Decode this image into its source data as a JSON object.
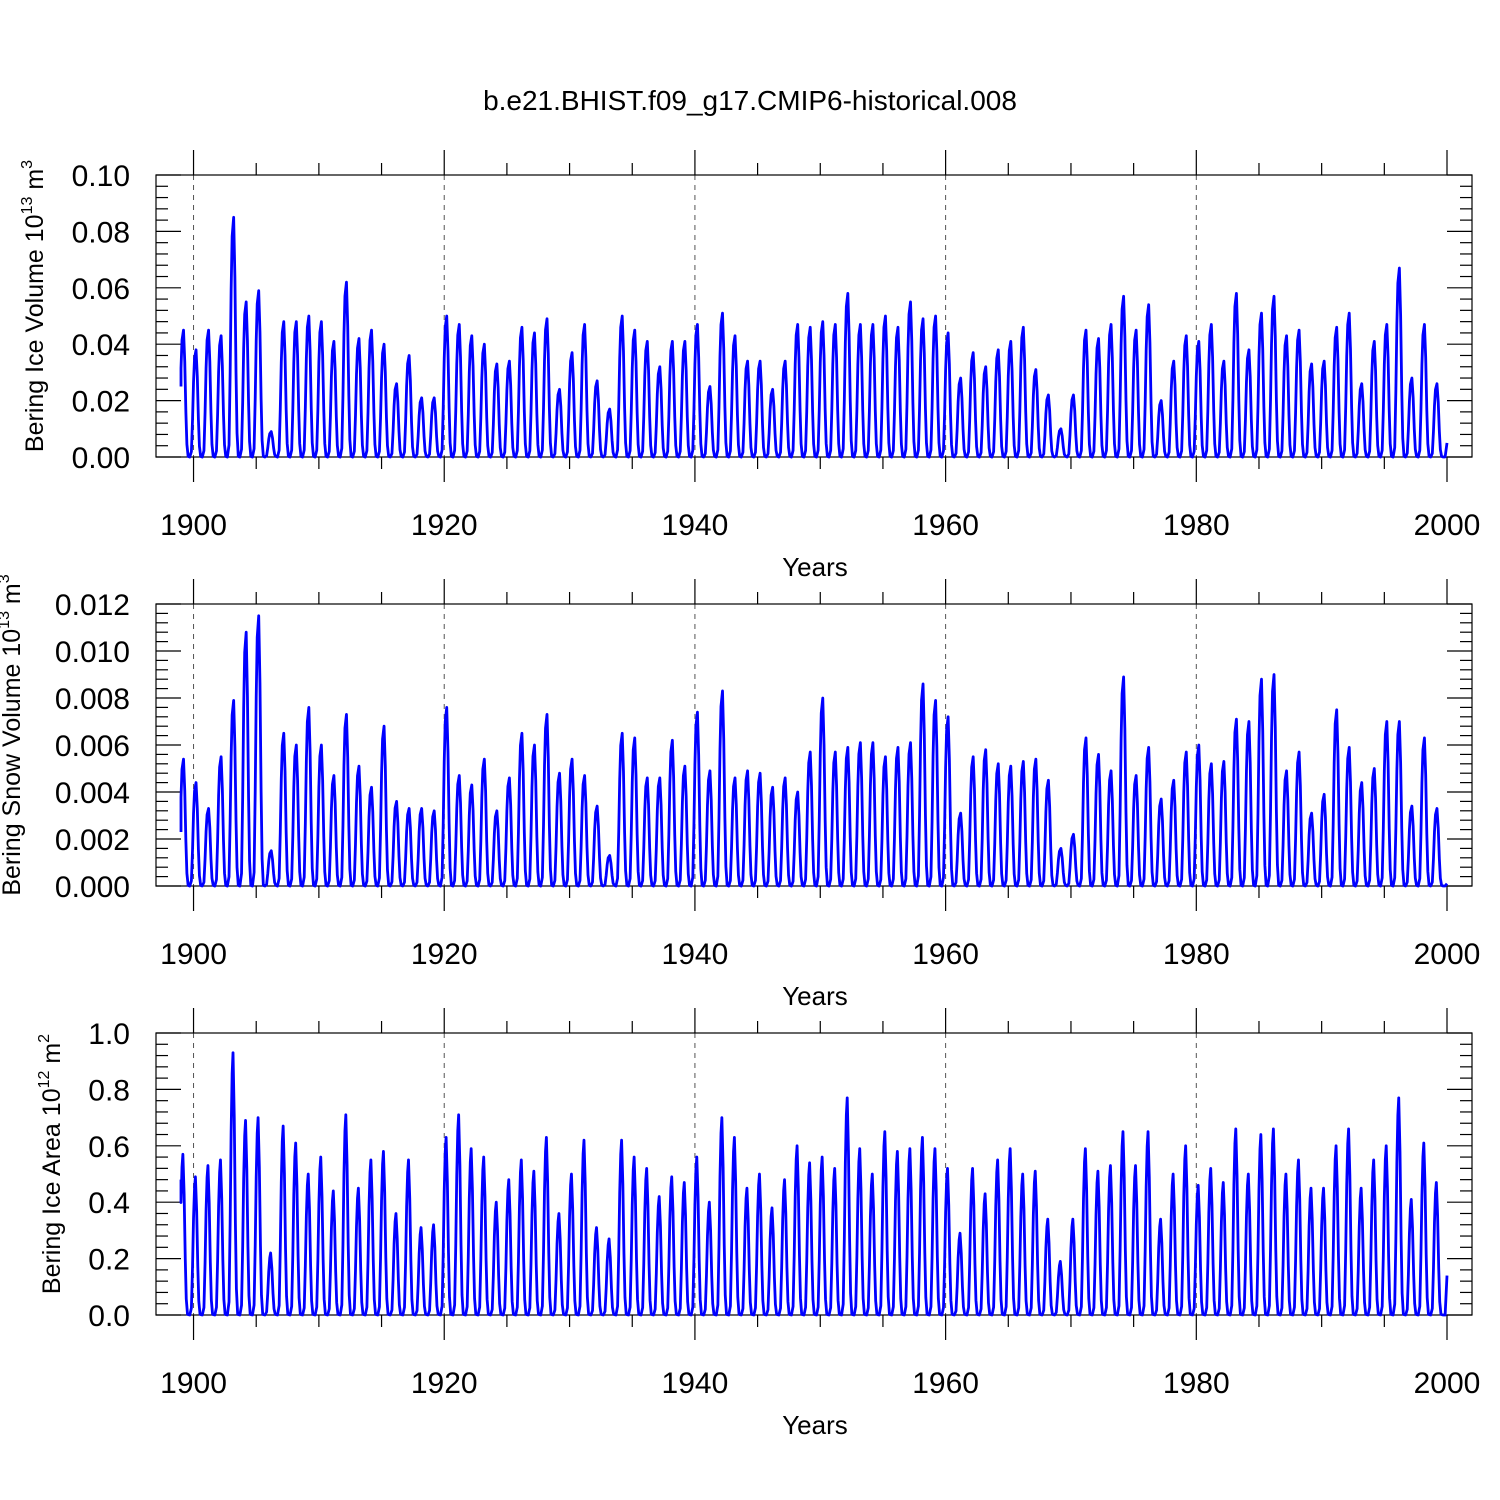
{
  "title": "b.e21.BHIST.f09_g17.CMIP6-historical.008",
  "line_color": "#0000ff",
  "chart_data": [
    {
      "type": "line",
      "ylabel": {
        "main": "Bering Ice Volume 10",
        "exp": "13",
        "unit": " m",
        "unit_exp": "3"
      },
      "xlabel": "Years",
      "xlim": [
        1898.8,
        2000.1
      ],
      "xticks": [
        1900,
        1920,
        1940,
        1960,
        1980,
        2000
      ],
      "xtick_labels": [
        "1900",
        "1920",
        "1940",
        "1960",
        "1980",
        "2000"
      ],
      "ylim": [
        0,
        0.1
      ],
      "yticks": [
        0,
        0.02,
        0.04,
        0.06,
        0.08,
        0.1
      ],
      "ytick_labels": [
        "0.00",
        "0.02",
        "0.04",
        "0.06",
        "0.08",
        "0.10"
      ],
      "grid_x": "dashed",
      "peak_month_offset": 0.25,
      "years": [
        1899,
        1900,
        1901,
        1902,
        1903,
        1904,
        1905,
        1906,
        1907,
        1908,
        1909,
        1910,
        1911,
        1912,
        1913,
        1914,
        1915,
        1916,
        1917,
        1918,
        1919,
        1920,
        1921,
        1922,
        1923,
        1924,
        1925,
        1926,
        1927,
        1928,
        1929,
        1930,
        1931,
        1932,
        1933,
        1934,
        1935,
        1936,
        1937,
        1938,
        1939,
        1940,
        1941,
        1942,
        1943,
        1944,
        1945,
        1946,
        1947,
        1948,
        1949,
        1950,
        1951,
        1952,
        1953,
        1954,
        1955,
        1956,
        1957,
        1958,
        1959,
        1960,
        1961,
        1962,
        1963,
        1964,
        1965,
        1966,
        1967,
        1968,
        1969,
        1970,
        1971,
        1972,
        1973,
        1974,
        1975,
        1976,
        1977,
        1978,
        1979,
        1980,
        1981,
        1982,
        1983,
        1984,
        1985,
        1986,
        1987,
        1988,
        1989,
        1990,
        1991,
        1992,
        1993,
        1994,
        1995,
        1996,
        1997,
        1998,
        1999
      ],
      "annual_peaks": [
        0.045,
        0.038,
        0.045,
        0.043,
        0.085,
        0.055,
        0.059,
        0.009,
        0.048,
        0.048,
        0.05,
        0.048,
        0.041,
        0.062,
        0.042,
        0.045,
        0.04,
        0.026,
        0.036,
        0.021,
        0.021,
        0.05,
        0.047,
        0.043,
        0.04,
        0.033,
        0.034,
        0.046,
        0.044,
        0.049,
        0.024,
        0.037,
        0.047,
        0.027,
        0.017,
        0.05,
        0.045,
        0.041,
        0.032,
        0.041,
        0.041,
        0.047,
        0.025,
        0.051,
        0.043,
        0.034,
        0.034,
        0.024,
        0.034,
        0.047,
        0.046,
        0.048,
        0.047,
        0.058,
        0.047,
        0.047,
        0.05,
        0.046,
        0.055,
        0.049,
        0.05,
        0.044,
        0.028,
        0.037,
        0.032,
        0.038,
        0.041,
        0.046,
        0.031,
        0.022,
        0.01,
        0.022,
        0.045,
        0.042,
        0.047,
        0.057,
        0.045,
        0.054,
        0.02,
        0.034,
        0.043,
        0.041,
        0.047,
        0.034,
        0.058,
        0.038,
        0.051,
        0.057,
        0.043,
        0.045,
        0.033,
        0.034,
        0.046,
        0.051,
        0.026,
        0.041,
        0.047,
        0.067,
        0.028,
        0.047,
        0.026
      ],
      "series_start": 0.025,
      "series_end": 0.005
    },
    {
      "type": "line",
      "ylabel": {
        "main": "Bering Snow Volume 10",
        "exp": "13",
        "unit": " m",
        "unit_exp": "3"
      },
      "xlabel": "Years",
      "xlim": [
        1898.8,
        2000.1
      ],
      "xticks": [
        1900,
        1920,
        1940,
        1960,
        1980,
        2000
      ],
      "xtick_labels": [
        "1900",
        "1920",
        "1940",
        "1960",
        "1980",
        "2000"
      ],
      "ylim": [
        0,
        0.012
      ],
      "yticks": [
        0,
        0.002,
        0.004,
        0.006,
        0.008,
        0.01,
        0.012
      ],
      "ytick_labels": [
        "0.000",
        "0.002",
        "0.004",
        "0.006",
        "0.008",
        "0.010",
        "0.012"
      ],
      "grid_x": "dashed",
      "peak_month_offset": 0.25,
      "years": [
        1899,
        1900,
        1901,
        1902,
        1903,
        1904,
        1905,
        1906,
        1907,
        1908,
        1909,
        1910,
        1911,
        1912,
        1913,
        1914,
        1915,
        1916,
        1917,
        1918,
        1919,
        1920,
        1921,
        1922,
        1923,
        1924,
        1925,
        1926,
        1927,
        1928,
        1929,
        1930,
        1931,
        1932,
        1933,
        1934,
        1935,
        1936,
        1937,
        1938,
        1939,
        1940,
        1941,
        1942,
        1943,
        1944,
        1945,
        1946,
        1947,
        1948,
        1949,
        1950,
        1951,
        1952,
        1953,
        1954,
        1955,
        1956,
        1957,
        1958,
        1959,
        1960,
        1961,
        1962,
        1963,
        1964,
        1965,
        1966,
        1967,
        1968,
        1969,
        1970,
        1971,
        1972,
        1973,
        1974,
        1975,
        1976,
        1977,
        1978,
        1979,
        1980,
        1981,
        1982,
        1983,
        1984,
        1985,
        1986,
        1987,
        1988,
        1989,
        1990,
        1991,
        1992,
        1993,
        1994,
        1995,
        1996,
        1997,
        1998,
        1999
      ],
      "annual_peaks": [
        0.0054,
        0.0044,
        0.0033,
        0.0055,
        0.0079,
        0.0108,
        0.0115,
        0.0015,
        0.0065,
        0.006,
        0.0076,
        0.006,
        0.0047,
        0.0073,
        0.0051,
        0.0042,
        0.0068,
        0.0036,
        0.0033,
        0.0033,
        0.0032,
        0.0076,
        0.0047,
        0.0043,
        0.0054,
        0.0032,
        0.0046,
        0.0065,
        0.006,
        0.0073,
        0.0048,
        0.0054,
        0.0047,
        0.0034,
        0.0013,
        0.0065,
        0.0063,
        0.0046,
        0.0046,
        0.0062,
        0.0051,
        0.0074,
        0.0049,
        0.0083,
        0.0046,
        0.0049,
        0.0048,
        0.0042,
        0.0046,
        0.004,
        0.0057,
        0.008,
        0.0057,
        0.0059,
        0.0061,
        0.0061,
        0.0055,
        0.0059,
        0.0061,
        0.0086,
        0.0079,
        0.0072,
        0.0031,
        0.0055,
        0.0058,
        0.0052,
        0.0051,
        0.0053,
        0.0054,
        0.0045,
        0.0016,
        0.0022,
        0.0063,
        0.0056,
        0.0049,
        0.0089,
        0.0047,
        0.0059,
        0.0037,
        0.0045,
        0.0057,
        0.006,
        0.0052,
        0.0053,
        0.0071,
        0.007,
        0.0088,
        0.009,
        0.0049,
        0.0057,
        0.0031,
        0.0039,
        0.0075,
        0.0059,
        0.0044,
        0.005,
        0.007,
        0.007,
        0.0034,
        0.0063,
        0.0033
      ],
      "series_start": 0.0023,
      "series_end": 0.0001
    },
    {
      "type": "line",
      "ylabel": {
        "main": "Bering Ice Area 10",
        "exp": "12",
        "unit": " m",
        "unit_exp": "2"
      },
      "xlabel": "Years",
      "xlim": [
        1898.8,
        2000.1
      ],
      "xticks": [
        1900,
        1920,
        1940,
        1960,
        1980,
        2000
      ],
      "xtick_labels": [
        "1900",
        "1920",
        "1940",
        "1960",
        "1980",
        "2000"
      ],
      "ylim": [
        0,
        1.0
      ],
      "yticks": [
        0,
        0.2,
        0.4,
        0.6,
        0.8,
        1.0
      ],
      "ytick_labels": [
        "0.0",
        "0.2",
        "0.4",
        "0.6",
        "0.8",
        "1.0"
      ],
      "grid_x": "dashed",
      "peak_month_offset": 0.2,
      "years": [
        1899,
        1900,
        1901,
        1902,
        1903,
        1904,
        1905,
        1906,
        1907,
        1908,
        1909,
        1910,
        1911,
        1912,
        1913,
        1914,
        1915,
        1916,
        1917,
        1918,
        1919,
        1920,
        1921,
        1922,
        1923,
        1924,
        1925,
        1926,
        1927,
        1928,
        1929,
        1930,
        1931,
        1932,
        1933,
        1934,
        1935,
        1936,
        1937,
        1938,
        1939,
        1940,
        1941,
        1942,
        1943,
        1944,
        1945,
        1946,
        1947,
        1948,
        1949,
        1950,
        1951,
        1952,
        1953,
        1954,
        1955,
        1956,
        1957,
        1958,
        1959,
        1960,
        1961,
        1962,
        1963,
        1964,
        1965,
        1966,
        1967,
        1968,
        1969,
        1970,
        1971,
        1972,
        1973,
        1974,
        1975,
        1976,
        1977,
        1978,
        1979,
        1980,
        1981,
        1982,
        1983,
        1984,
        1985,
        1986,
        1987,
        1988,
        1989,
        1990,
        1991,
        1992,
        1993,
        1994,
        1995,
        1996,
        1997,
        1998,
        1999
      ],
      "annual_peaks": [
        0.57,
        0.49,
        0.53,
        0.55,
        0.93,
        0.69,
        0.7,
        0.22,
        0.67,
        0.61,
        0.5,
        0.56,
        0.44,
        0.71,
        0.45,
        0.55,
        0.58,
        0.36,
        0.55,
        0.31,
        0.32,
        0.63,
        0.71,
        0.59,
        0.56,
        0.4,
        0.48,
        0.55,
        0.51,
        0.63,
        0.36,
        0.5,
        0.62,
        0.31,
        0.27,
        0.62,
        0.56,
        0.52,
        0.42,
        0.49,
        0.47,
        0.56,
        0.4,
        0.7,
        0.63,
        0.45,
        0.5,
        0.38,
        0.48,
        0.6,
        0.54,
        0.56,
        0.52,
        0.77,
        0.59,
        0.5,
        0.65,
        0.58,
        0.59,
        0.63,
        0.59,
        0.52,
        0.29,
        0.52,
        0.43,
        0.55,
        0.59,
        0.5,
        0.51,
        0.34,
        0.19,
        0.34,
        0.59,
        0.51,
        0.53,
        0.65,
        0.53,
        0.65,
        0.34,
        0.5,
        0.6,
        0.46,
        0.52,
        0.47,
        0.66,
        0.5,
        0.64,
        0.66,
        0.5,
        0.55,
        0.45,
        0.45,
        0.6,
        0.66,
        0.45,
        0.55,
        0.6,
        0.77,
        0.41,
        0.61,
        0.47
      ],
      "series_start": 0.48,
      "series_end": 0.14
    }
  ]
}
